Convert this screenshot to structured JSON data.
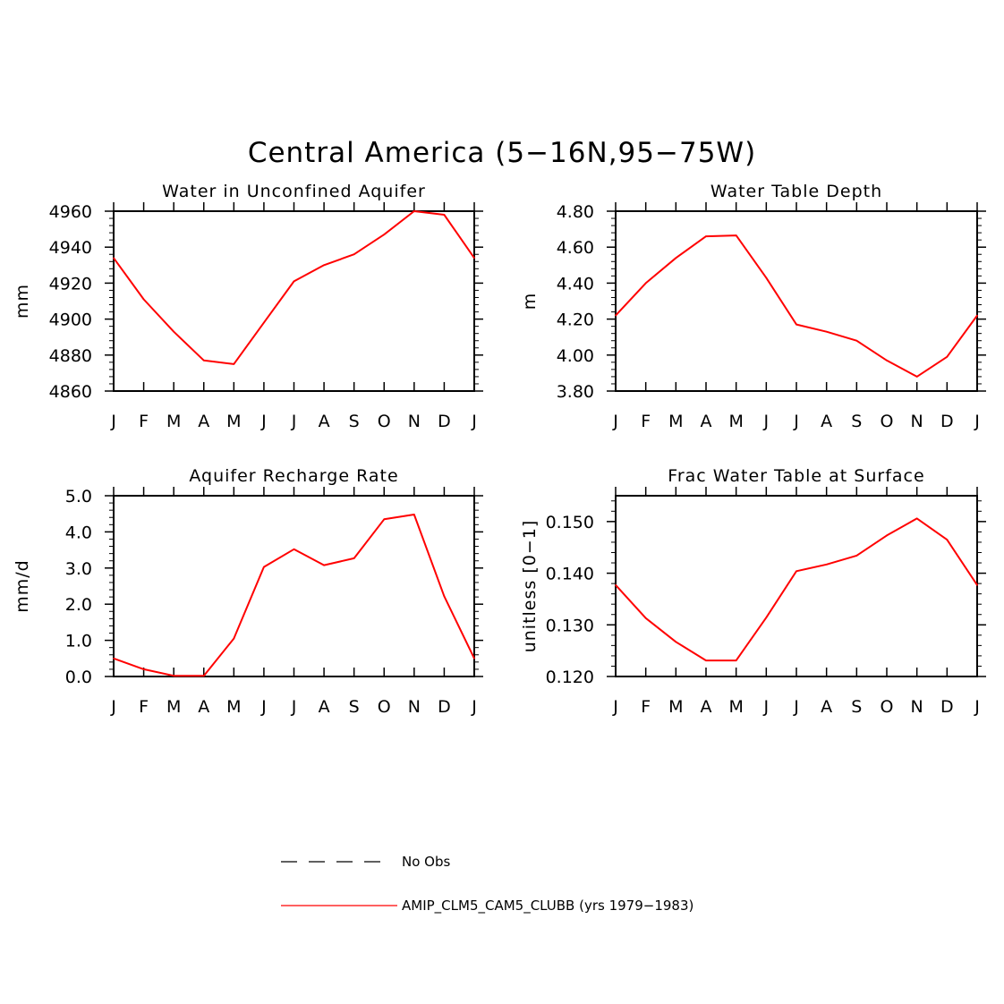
{
  "figure": {
    "title": "Central America (5−16N,95−75W)"
  },
  "chart_data": [
    {
      "type": "line",
      "title": "Water in Unconfined Aquifer",
      "xlabel": "",
      "ylabel": "mm",
      "x_tick_labels": [
        "J",
        "F",
        "M",
        "A",
        "M",
        "J",
        "J",
        "A",
        "S",
        "O",
        "N",
        "D",
        "J"
      ],
      "y_tick_labels": [
        "4960",
        "4940",
        "4920",
        "4900",
        "4880",
        "4860"
      ],
      "ylim": [
        4860,
        4960
      ],
      "yticks": [
        4960,
        4940,
        4920,
        4900,
        4880,
        4860
      ],
      "series": [
        {
          "name": "AMIP_CLM5_CAM5_CLUBB (yrs 1979−1983)",
          "color": "#ff0000",
          "values": [
            4934,
            4911,
            4893,
            4877,
            4875,
            4898,
            4921,
            4930,
            4936,
            4947,
            4960,
            4958,
            4934
          ]
        }
      ]
    },
    {
      "type": "line",
      "title": "Water Table Depth",
      "xlabel": "",
      "ylabel": "m",
      "x_tick_labels": [
        "J",
        "F",
        "M",
        "A",
        "M",
        "J",
        "J",
        "A",
        "S",
        "O",
        "N",
        "D",
        "J"
      ],
      "y_tick_labels": [
        "4.80",
        "4.60",
        "4.40",
        "4.20",
        "4.00",
        "3.80"
      ],
      "ylim": [
        3.8,
        4.8
      ],
      "yticks": [
        4.8,
        4.6,
        4.4,
        4.2,
        4.0,
        3.8
      ],
      "series": [
        {
          "name": "AMIP_CLM5_CAM5_CLUBB (yrs 1979−1983)",
          "color": "#ff0000",
          "values": [
            4.22,
            4.4,
            4.54,
            4.66,
            4.665,
            4.43,
            4.17,
            4.13,
            4.08,
            3.97,
            3.88,
            3.99,
            4.22
          ]
        }
      ]
    },
    {
      "type": "line",
      "title": "Aquifer Recharge Rate",
      "xlabel": "",
      "ylabel": "mm/d",
      "x_tick_labels": [
        "J",
        "F",
        "M",
        "A",
        "M",
        "J",
        "J",
        "A",
        "S",
        "O",
        "N",
        "D",
        "J"
      ],
      "y_tick_labels": [
        "5.0",
        "4.0",
        "3.0",
        "2.0",
        "1.0",
        "0.0"
      ],
      "ylim": [
        0.0,
        5.0
      ],
      "yticks": [
        5.0,
        4.0,
        3.0,
        2.0,
        1.0,
        0.0
      ],
      "series": [
        {
          "name": "AMIP_CLM5_CAM5_CLUBB (yrs 1979−1983)",
          "color": "#ff0000",
          "values": [
            0.5,
            0.2,
            0.02,
            0.02,
            1.05,
            3.03,
            3.52,
            3.08,
            3.27,
            4.35,
            4.48,
            2.22,
            0.5
          ]
        }
      ]
    },
    {
      "type": "line",
      "title": "Frac Water Table at Surface",
      "xlabel": "",
      "ylabel": "unitless [0−1]",
      "x_tick_labels": [
        "J",
        "F",
        "M",
        "A",
        "M",
        "J",
        "J",
        "A",
        "S",
        "O",
        "N",
        "D",
        "J"
      ],
      "y_tick_labels": [
        "0.150",
        "0.140",
        "0.130",
        "0.120"
      ],
      "ylim": [
        0.12,
        0.155
      ],
      "yticks": [
        0.15,
        0.14,
        0.13,
        0.12
      ],
      "series": [
        {
          "name": "AMIP_CLM5_CAM5_CLUBB (yrs 1979−1983)",
          "color": "#ff0000",
          "values": [
            0.1377,
            0.1313,
            0.1267,
            0.1231,
            0.1231,
            0.1314,
            0.1404,
            0.1417,
            0.1434,
            0.1473,
            0.1506,
            0.1465,
            0.1377
          ]
        }
      ]
    }
  ],
  "legend": {
    "items": [
      {
        "label": "No Obs",
        "style": "dashed",
        "color": "#000000"
      },
      {
        "label": "AMIP_CLM5_CAM5_CLUBB (yrs 1979−1983)",
        "style": "solid",
        "color": "#ff0000"
      }
    ]
  }
}
